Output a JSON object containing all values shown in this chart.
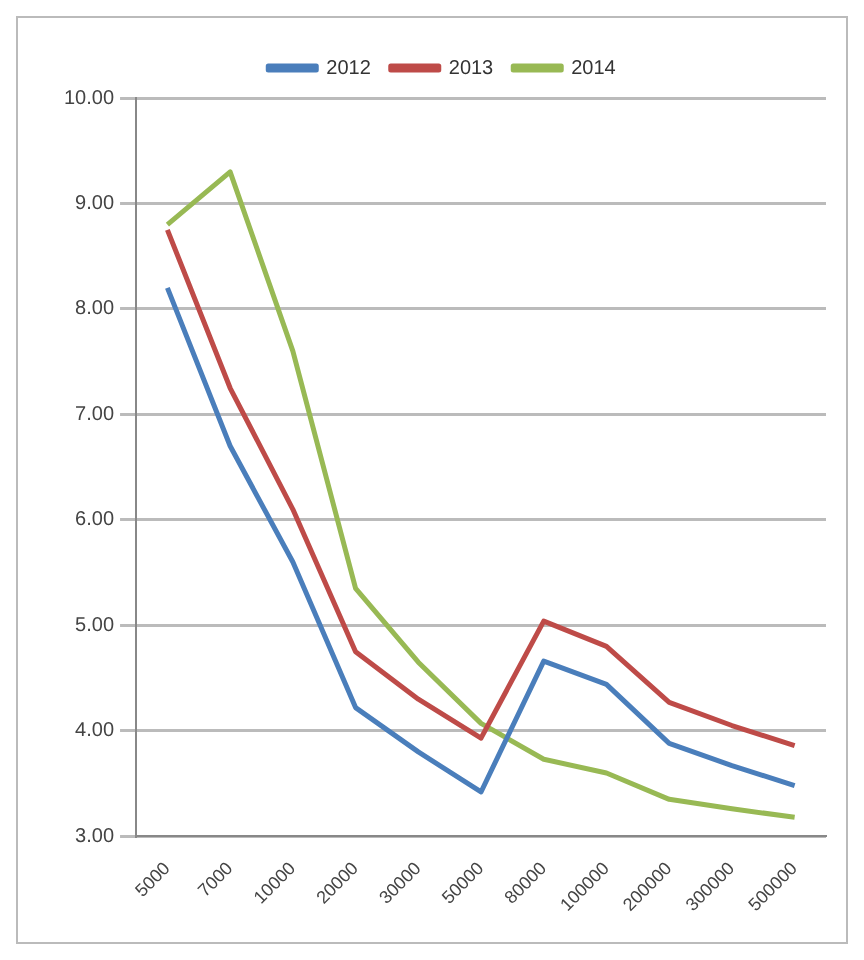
{
  "chart_data": {
    "type": "line",
    "categories": [
      "5000",
      "7000",
      "10000",
      "20000",
      "30000",
      "50000",
      "80000",
      "100000",
      "200000",
      "300000",
      "500000"
    ],
    "series": [
      {
        "name": "2012",
        "color": "#4a7ebb",
        "values": [
          8.2,
          6.7,
          5.6,
          4.22,
          3.8,
          3.42,
          4.66,
          4.44,
          3.88,
          3.67,
          3.48
        ]
      },
      {
        "name": "2013",
        "color": "#be4b48",
        "values": [
          8.75,
          7.25,
          6.1,
          4.75,
          4.3,
          3.93,
          5.04,
          4.8,
          4.27,
          4.05,
          3.86
        ]
      },
      {
        "name": "2014",
        "color": "#98b954",
        "values": [
          8.8,
          9.3,
          7.6,
          5.35,
          4.65,
          4.07,
          3.73,
          3.6,
          3.35,
          3.26,
          3.18
        ]
      }
    ],
    "ylim": [
      3,
      10
    ],
    "yticks": [
      {
        "value": 3,
        "label": "3.00"
      },
      {
        "value": 4,
        "label": "4.00"
      },
      {
        "value": 5,
        "label": "5.00"
      },
      {
        "value": 6,
        "label": "6.00"
      },
      {
        "value": 7,
        "label": "7.00"
      },
      {
        "value": 8,
        "label": "8.00"
      },
      {
        "value": 9,
        "label": "9.00"
      },
      {
        "value": 10,
        "label": "10.00"
      }
    ],
    "grid": "y",
    "legend": "top",
    "marker": "none",
    "line_style": "solid"
  }
}
